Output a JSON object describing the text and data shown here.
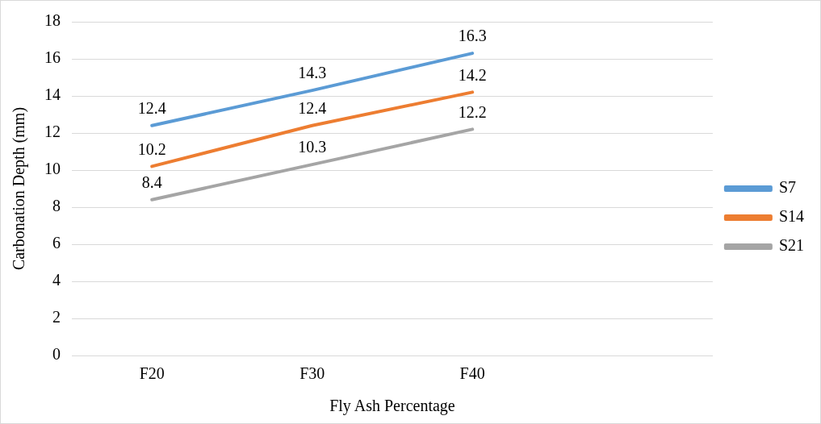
{
  "chart_data": {
    "type": "line",
    "xlabel": "Fly Ash Percentage",
    "ylabel": "Carbonation Depth (mm)",
    "categories": [
      "F20",
      "F30",
      "F40",
      null
    ],
    "series": [
      {
        "name": "S7",
        "color": "#5b9bd5",
        "values": [
          12.4,
          14.3,
          16.3,
          null
        ]
      },
      {
        "name": "S14",
        "color": "#ed7d31",
        "values": [
          10.2,
          12.4,
          14.2,
          null
        ]
      },
      {
        "name": "S21",
        "color": "#a5a5a5",
        "values": [
          8.4,
          10.3,
          12.2,
          null
        ]
      }
    ],
    "ylim": [
      0,
      18
    ],
    "yticks": [
      0,
      2,
      4,
      6,
      8,
      10,
      12,
      14,
      16,
      18
    ],
    "grid": "y",
    "legend": "right",
    "marker": "none",
    "line_style": "solid",
    "data_labels": true
  }
}
